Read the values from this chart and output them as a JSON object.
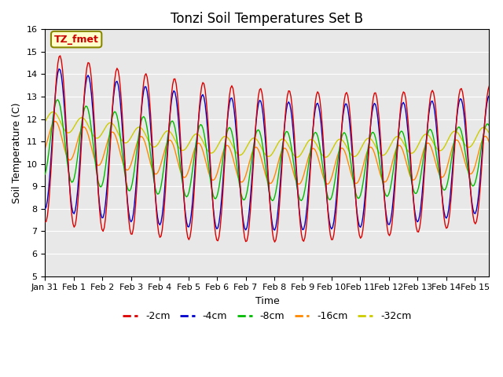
{
  "title": "Tonzi Soil Temperatures Set B",
  "xlabel": "Time",
  "ylabel": "Soil Temperature (C)",
  "ylim": [
    5.0,
    16.0
  ],
  "yticks": [
    5.0,
    6.0,
    7.0,
    8.0,
    9.0,
    10.0,
    11.0,
    12.0,
    13.0,
    14.0,
    15.0,
    16.0
  ],
  "colors": {
    "-2cm": "#dd0000",
    "-4cm": "#0000cc",
    "-8cm": "#00bb00",
    "-16cm": "#ff8800",
    "-32cm": "#cccc00"
  },
  "legend_label": "TZ_fmet",
  "legend_box_color": "#ffffcc",
  "legend_box_border": "#888800",
  "background_color": "#e8e8e8",
  "x_start_day": 0,
  "n_days": 15.5,
  "xtick_labels": [
    "Jan 31",
    "Feb 1",
    "Feb 2",
    "Feb 3",
    "Feb 4",
    "Feb 5",
    "Feb 6",
    "Feb 7",
    "Feb 8",
    "Feb 9",
    "Feb 10",
    "Feb 11",
    "Feb 12",
    "Feb 13",
    "Feb 14",
    "Feb 15"
  ],
  "xtick_positions": [
    0,
    1,
    2,
    3,
    4,
    5,
    6,
    7,
    8,
    9,
    10,
    11,
    12,
    13,
    14,
    15
  ]
}
